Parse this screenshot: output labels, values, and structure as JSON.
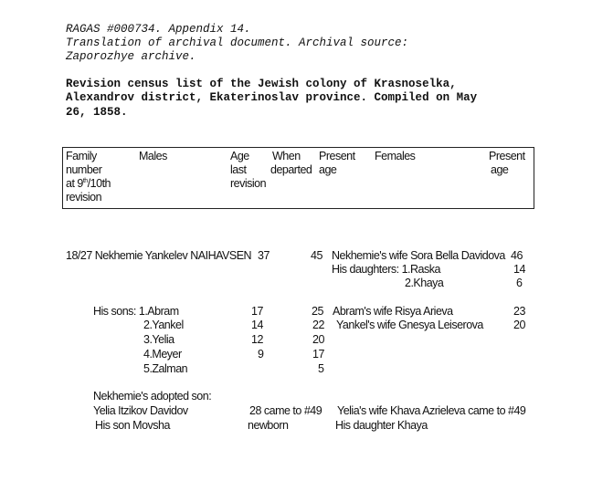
{
  "heading": {
    "line1": "RAGAS #000734. Appendix 14.",
    "line2": "Translation of archival document.  Archival source:",
    "line3": "Zaporozhye archive."
  },
  "title": {
    "line1": "Revision census list of the Jewish colony of Krasnoselka,",
    "line2": "Alexandrov  district, Ekaterinoslav province. Compiled on May",
    "line3": "26, 1858."
  },
  "table_header": {
    "family": [
      "Family",
      "number",
      "at 9",
      "/10th",
      "revision"
    ],
    "family_sup": "th",
    "males": "Males",
    "age_last": [
      "Age",
      "last",
      "revision"
    ],
    "when_departed": [
      "When",
      "departed"
    ],
    "present_age": [
      "Present",
      "age"
    ],
    "females": "Females",
    "present_age_f": [
      "Present",
      "age"
    ]
  },
  "rows": {
    "head": {
      "male": "18/27 Nekhemie Yankelev NAIHAVSEN",
      "age_last": "37",
      "present": "45",
      "female": "Nekhemie's wife Sora Bella Davidova",
      "female_age": "46"
    },
    "daughter1": {
      "female": "His daughters: 1.Raska",
      "female_age": "14"
    },
    "daughter2": {
      "female": "2.Khaya",
      "female_age": "6"
    },
    "son1": {
      "male": "His sons: 1.Abram",
      "age_last": "17",
      "present": "25",
      "female": "Abram's wife Risya Arieva",
      "female_age": "23"
    },
    "son2": {
      "male": "2.Yankel",
      "age_last": "14",
      "present": "22",
      "female": "Yankel's wife Gnesya Leiserova",
      "female_age": "20"
    },
    "son3": {
      "male": "3.Yelia",
      "age_last": "12",
      "present": "20"
    },
    "son4": {
      "male": "4.Meyer",
      "age_last": "9",
      "present": "17"
    },
    "son5": {
      "male": "5.Zalman",
      "present": "5"
    },
    "adopted_label": "Nekhemie's adopted son:",
    "adopted": {
      "male": "Yelia Itzikov Davidov",
      "age_info": "28 came to #49",
      "female": "Yelia's wife Khava Azrieleva came to #49"
    },
    "adopted_child": {
      "male": "His son Movsha",
      "age_info": "newborn",
      "female": "His daughter Khaya"
    }
  }
}
